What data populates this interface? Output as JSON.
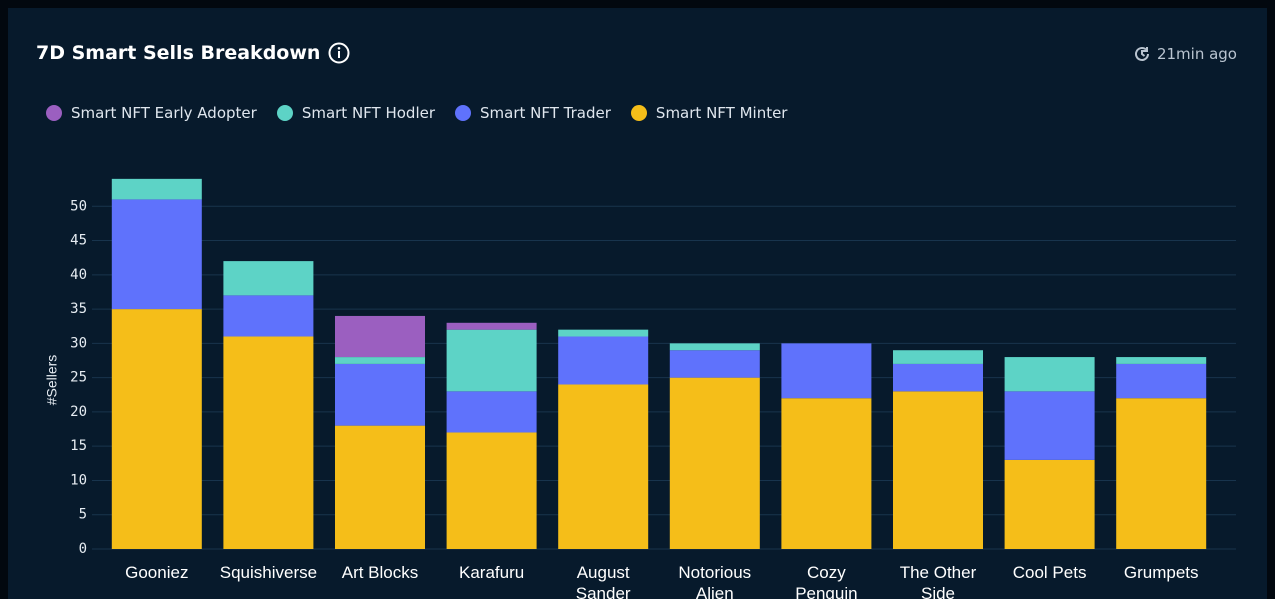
{
  "header": {
    "title": "7D Smart Sells Breakdown",
    "updated": "21min ago"
  },
  "chart_data": {
    "type": "stacked-bar",
    "y_label": "#Sellers",
    "categories": [
      "Gooniez",
      "Squishiverse",
      "Art Blocks",
      "Karafuru",
      "August Sander",
      "Notorious Alien",
      "Cozy Penguin",
      "The Other Side",
      "Cool Pets",
      "Grumpets"
    ],
    "series": [
      {
        "name": "Smart NFT Early Adopter",
        "color": "#9b5fc0",
        "values": [
          0,
          0,
          6,
          1,
          0,
          0,
          0,
          0,
          0,
          0
        ]
      },
      {
        "name": "Smart NFT Hodler",
        "color": "#5dd3c6",
        "values": [
          3,
          5,
          1,
          9,
          1,
          1,
          0,
          2,
          5,
          1
        ]
      },
      {
        "name": "Smart NFT Trader",
        "color": "#5f72fc",
        "values": [
          16,
          6,
          9,
          6,
          7,
          4,
          8,
          4,
          10,
          5
        ]
      },
      {
        "name": "Smart NFT Minter",
        "color": "#f5be19",
        "values": [
          35,
          31,
          18,
          17,
          24,
          25,
          22,
          23,
          13,
          22
        ]
      }
    ],
    "ylim": [
      0,
      55
    ],
    "yticks": [
      0,
      5,
      10,
      15,
      20,
      25,
      30,
      35,
      40,
      45,
      50
    ],
    "grid": true
  }
}
